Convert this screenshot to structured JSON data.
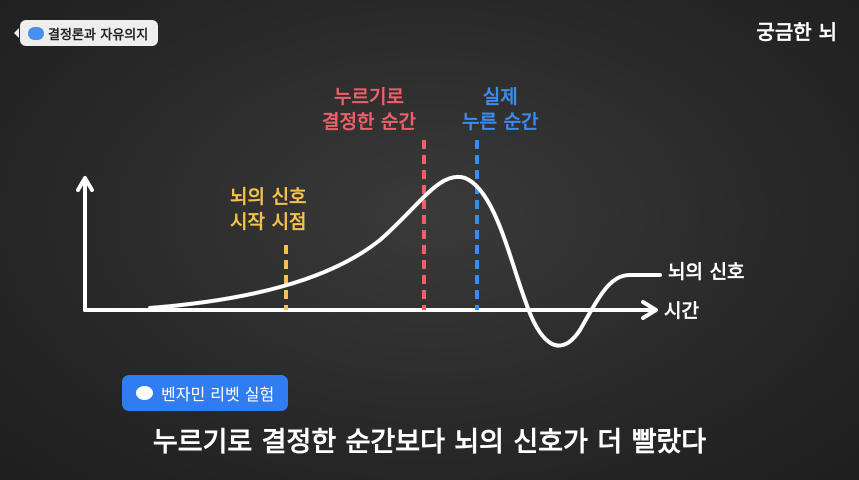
{
  "topic": {
    "icon": "brain-icon",
    "label": "결정론과 자유의지"
  },
  "brand": "궁금한 뇌",
  "diagram": {
    "signal_start": [
      "뇌의 신호",
      "시작 시점"
    ],
    "decided": [
      "누르기로",
      "결정한 순간"
    ],
    "pressed": [
      "실제",
      "누른 순간"
    ],
    "curve_label": "뇌의 신호",
    "x_axis_label": "시간",
    "colors": {
      "signal_start": "#f2c14e",
      "decided": "#ef5f6a",
      "pressed": "#3a8cf2"
    }
  },
  "experiment": {
    "icon": "speech-bubble-icon",
    "label": "벤자민 리벳 실험"
  },
  "subtitle": "누르기로 결정한 순간보다 뇌의 신호가 더 빨랐다"
}
